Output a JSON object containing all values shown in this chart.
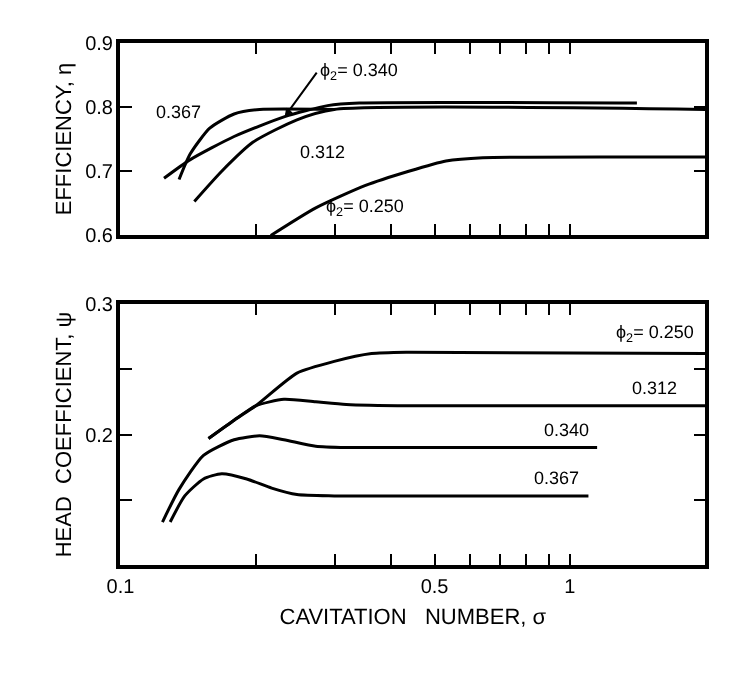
{
  "chart_data": [
    {
      "type": "line",
      "ylabel": "EFFICIENCY, η",
      "log": "x",
      "tick_labels": "y",
      "xlim": [
        0.1,
        2.0
      ],
      "xticks": [
        {
          "value": 0.1,
          "label": null
        },
        {
          "value": 0.2,
          "label": null
        },
        {
          "value": 0.3,
          "label": null
        },
        {
          "value": 0.4,
          "label": null
        },
        {
          "value": 0.5,
          "label": null
        },
        {
          "value": 0.6,
          "label": null
        },
        {
          "value": 0.7,
          "label": null
        },
        {
          "value": 0.8,
          "label": null
        },
        {
          "value": 0.9,
          "label": null
        },
        {
          "value": 1,
          "label": null
        },
        {
          "value": 2,
          "label": null
        }
      ],
      "ylim": [
        0.6,
        0.9
      ],
      "yticks": [
        0.6,
        0.7,
        0.8,
        0.9
      ],
      "marker": "none",
      "line_style": "solid",
      "series": [
        {
          "name": "ϕ$_{2}$= 0.340",
          "color": "#000000",
          "x": [
            0.125,
            0.143,
            0.179,
            0.232,
            0.289,
            0.34,
            1.41
          ],
          "values": [
            0.689,
            0.718,
            0.754,
            0.785,
            0.802,
            0.806,
            0.806
          ]
        },
        {
          "name": "0.367",
          "color": "#000000",
          "x": [
            0.135,
            0.143,
            0.158,
            0.179,
            0.204,
            0.299
          ],
          "values": [
            0.687,
            0.727,
            0.767,
            0.789,
            0.796,
            0.796
          ]
        },
        {
          "name": "0.312",
          "color": "#000000",
          "x": [
            0.146,
            0.168,
            0.197,
            0.247,
            0.299,
            2.0
          ],
          "values": [
            0.653,
            0.7,
            0.745,
            0.78,
            0.796,
            0.796
          ]
        },
        {
          "name": "ϕ$_{2}$= 0.250",
          "color": "#000000",
          "x": [
            0.216,
            0.272,
            0.351,
            0.438,
            0.53,
            0.64,
            2.0
          ],
          "values": [
            0.6,
            0.643,
            0.678,
            0.7,
            0.716,
            0.721,
            0.722
          ]
        }
      ]
    },
    {
      "type": "line",
      "ylabel": "HEAD  COEFFICIENT, ψ",
      "xlabel": "CAVITATION   NUMBER, σ",
      "log": "x",
      "xlim": [
        0.1,
        2.0
      ],
      "xticks": [
        0.1,
        {
          "value": 0.2,
          "label": null
        },
        {
          "value": 0.3,
          "label": null
        },
        {
          "value": 0.4,
          "label": null
        },
        0.5,
        {
          "value": 0.6,
          "label": null
        },
        {
          "value": 0.7,
          "label": null
        },
        {
          "value": 0.8,
          "label": null
        },
        {
          "value": 0.9,
          "label": null
        },
        1,
        {
          "value": 2,
          "label": null
        }
      ],
      "ylim": [
        0.1,
        0.3
      ],
      "yticks": [
        {
          "value": 0.15,
          "label": null
        },
        0.2,
        {
          "value": 0.25,
          "label": null
        },
        0.3
      ],
      "marker": "none",
      "line_style": "solid",
      "series": [
        {
          "name": "ϕ$_{2}$= 0.250",
          "color": "#000000",
          "x": [
            0.157,
            0.179,
            0.2,
            0.247,
            0.299,
            0.362,
            0.438,
            2.0
          ],
          "values": [
            0.197,
            0.211,
            0.222,
            0.247,
            0.256,
            0.262,
            0.263,
            0.262
          ]
        },
        {
          "name": "0.312",
          "color": "#000000",
          "x": [
            0.157,
            0.179,
            0.2,
            0.231,
            0.272,
            0.318,
            0.438,
            2.0
          ],
          "values": [
            0.197,
            0.211,
            0.222,
            0.227,
            0.225,
            0.223,
            0.222,
            0.222
          ]
        },
        {
          "name": "0.340",
          "color": "#000000",
          "x": [
            0.124,
            0.135,
            0.153,
            0.179,
            0.204,
            0.231,
            0.272,
            0.318,
            1.15
          ],
          "values": [
            0.133,
            0.158,
            0.184,
            0.196,
            0.199,
            0.196,
            0.191,
            0.19,
            0.19
          ]
        },
        {
          "name": "0.367",
          "color": "#000000",
          "x": [
            0.129,
            0.139,
            0.153,
            0.168,
            0.191,
            0.217,
            0.247,
            0.299,
            1.1
          ],
          "values": [
            0.133,
            0.153,
            0.166,
            0.17,
            0.166,
            0.159,
            0.154,
            0.153,
            0.153
          ]
        }
      ]
    }
  ]
}
